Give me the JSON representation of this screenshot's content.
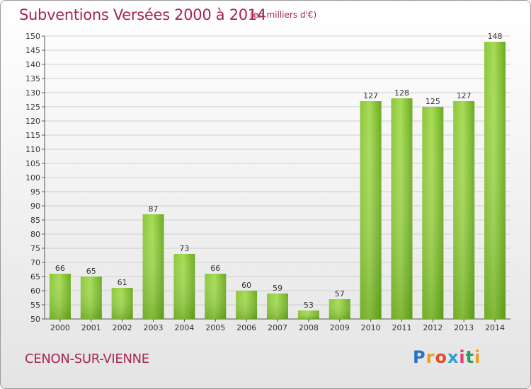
{
  "header": {
    "title": "Subventions Versées 2000 à 2014",
    "subtitle": "(en milliers d'€)"
  },
  "footer": {
    "commune": "CENON-SUR-VIENNE",
    "logo_text": "Proxiti",
    "logo_colors": [
      "#2a72c8",
      "#e8a020",
      "#e54b2a",
      "#2a9fd8",
      "#e63b7a",
      "#2aa05a",
      "#e8a020"
    ]
  },
  "chart_data": {
    "type": "bar",
    "title": "Subventions Versées 2000 à 2014",
    "subtitle": "(en milliers d'€)",
    "categories": [
      "2000",
      "2001",
      "2002",
      "2003",
      "2004",
      "2005",
      "2006",
      "2007",
      "2008",
      "2009",
      "2010",
      "2011",
      "2012",
      "2013",
      "2014"
    ],
    "values": [
      66,
      65,
      61,
      87,
      73,
      66,
      60,
      59,
      53,
      57,
      127,
      128,
      125,
      127,
      148
    ],
    "ylim": [
      50,
      150
    ],
    "yticks": [
      50,
      55,
      60,
      65,
      70,
      75,
      80,
      85,
      90,
      95,
      100,
      105,
      110,
      115,
      120,
      125,
      130,
      135,
      140,
      145,
      150
    ],
    "grid": true,
    "bar_color_light": "#9dd44a",
    "bar_color_dark": "#5e9e16",
    "xlabel": "",
    "ylabel": ""
  }
}
